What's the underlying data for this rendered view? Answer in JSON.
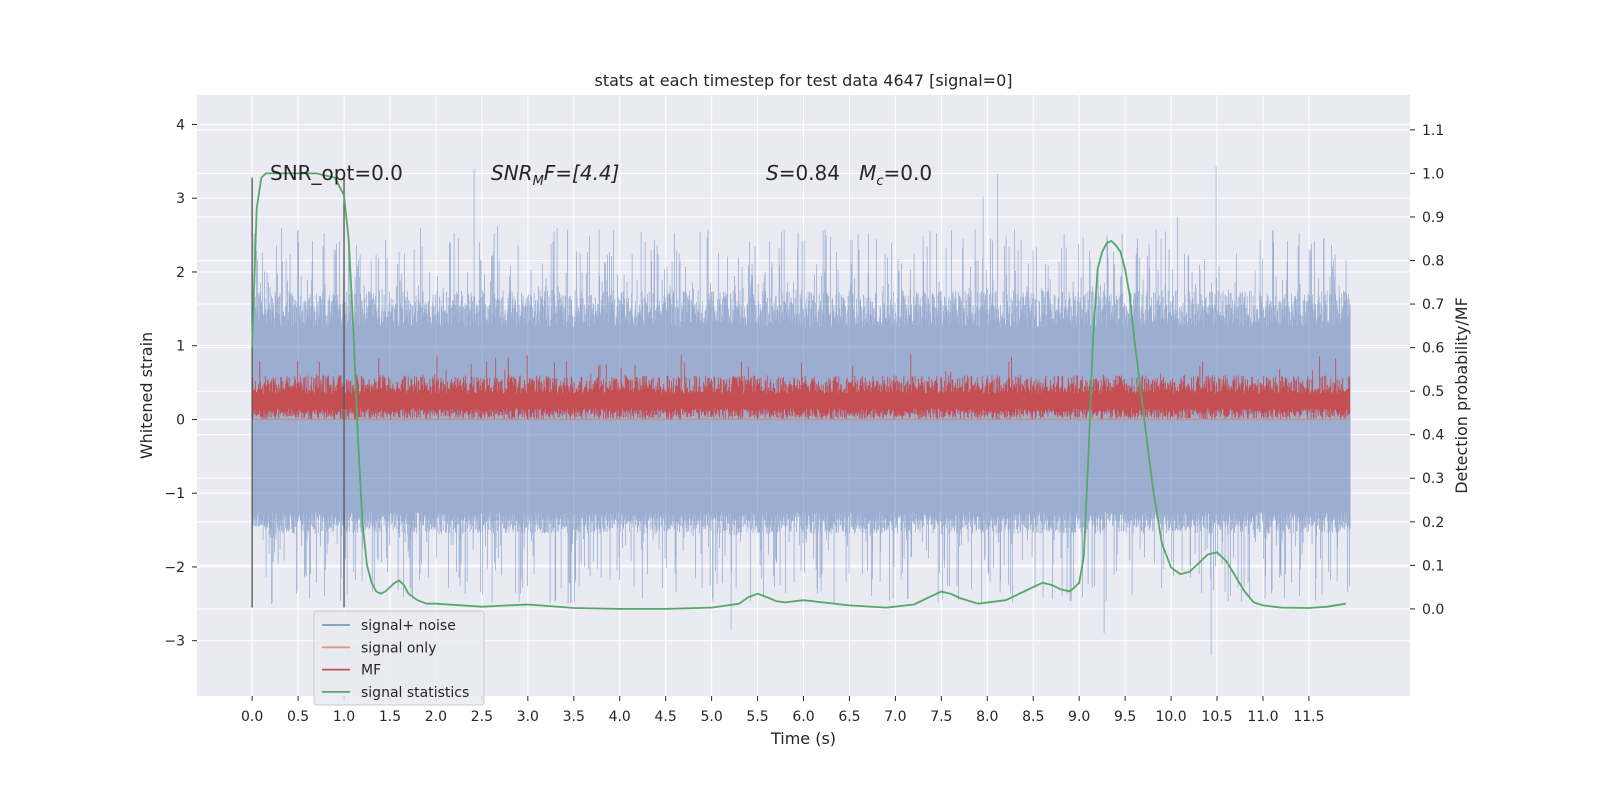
{
  "chart_data": {
    "type": "line",
    "title": "stats at each timestep for test data 4647 [signal=0]",
    "xlabel": "Time (s)",
    "ylabel": "Whitened strain",
    "y2label": "Detection probability/MF",
    "xlim": [
      -0.6,
      12.6
    ],
    "ylim": [
      -3.75,
      4.4
    ],
    "y2lim": [
      -0.2,
      1.18
    ],
    "x_ticks": [
      0.0,
      0.5,
      1.0,
      1.5,
      2.0,
      2.5,
      3.0,
      3.5,
      4.0,
      4.5,
      5.0,
      5.5,
      6.0,
      6.5,
      7.0,
      7.5,
      8.0,
      8.5,
      9.0,
      9.5,
      10.0,
      10.5,
      11.0,
      11.5
    ],
    "x_tick_labels": [
      "0.0",
      "0.5",
      "1.0",
      "1.5",
      "2.0",
      "2.5",
      "3.0",
      "3.5",
      "4.0",
      "4.5",
      "5.0",
      "5.5",
      "6.0",
      "6.5",
      "7.0",
      "7.5",
      "8.0",
      "8.5",
      "9.0",
      "9.5",
      "10.0",
      "10.5",
      "11.0",
      "11.5"
    ],
    "y_ticks": [
      -3,
      -2,
      -1,
      0,
      1,
      2,
      3,
      4
    ],
    "y_tick_labels": [
      "−3",
      "−2",
      "−1",
      "0",
      "1",
      "2",
      "3",
      "4"
    ],
    "y2_ticks": [
      0.0,
      0.1,
      0.2,
      0.3,
      0.4,
      0.5,
      0.6,
      0.7,
      0.8,
      0.9,
      1.0,
      1.1
    ],
    "y2_tick_labels": [
      "0.0",
      "0.1",
      "0.2",
      "0.3",
      "0.4",
      "0.5",
      "0.6",
      "0.7",
      "0.8",
      "0.9",
      "1.0",
      "1.1"
    ],
    "grid": true,
    "legend_position": "lower-left",
    "colors": {
      "background": "#eaeaf2",
      "grid": "#ffffff",
      "noise": "#4c72b0",
      "signal_only": "#dd8452",
      "mf": "#c44e52",
      "statistics": "#55a868",
      "marker": "#555555"
    },
    "annotations": [
      {
        "id": "snr-opt",
        "text": "SNR_opt=0.0"
      },
      {
        "id": "snr-mf",
        "text": "SNR",
        "sub": "M",
        "tail": "F=[4.4]"
      },
      {
        "id": "s-mc",
        "text": "S",
        "tail1": "=0.84   ",
        "text2": "M",
        "sub2": "c",
        "tail2": "=0.0"
      }
    ],
    "vertical_markers": [
      {
        "x": 0.0,
        "y_from": -2.55,
        "y_to": 3.28
      },
      {
        "x": 1.0,
        "y_from": -2.55,
        "y_to": 3.28
      }
    ],
    "series": [
      {
        "name": "signal+ noise",
        "axis": "left",
        "x_range": [
          0.0,
          11.95
        ],
        "band_low": -1.4,
        "band_high": 1.5,
        "burst_low": -2.5,
        "burst_high": 2.6
      },
      {
        "name": "signal only",
        "axis": "left",
        "constant": 0.0,
        "x_range": [
          0.0,
          11.95
        ]
      },
      {
        "name": "MF",
        "axis": "left",
        "x_range": [
          0.0,
          11.95
        ],
        "band_low": 0.0,
        "band_high": 0.6
      },
      {
        "name": "signal statistics",
        "axis": "right",
        "x": [
          0.0,
          0.05,
          0.1,
          0.15,
          0.2,
          0.3,
          0.5,
          0.7,
          0.9,
          1.0,
          1.05,
          1.1,
          1.15,
          1.2,
          1.25,
          1.3,
          1.35,
          1.4,
          1.45,
          1.5,
          1.55,
          1.6,
          1.65,
          1.7,
          1.8,
          1.9,
          2.0,
          2.5,
          3.0,
          3.5,
          4.0,
          4.5,
          5.0,
          5.3,
          5.4,
          5.5,
          5.6,
          5.7,
          5.8,
          6.0,
          6.5,
          6.9,
          7.2,
          7.4,
          7.5,
          7.6,
          7.7,
          7.9,
          8.2,
          8.4,
          8.5,
          8.6,
          8.7,
          8.8,
          8.9,
          9.0,
          9.05,
          9.1,
          9.15,
          9.2,
          9.25,
          9.3,
          9.35,
          9.4,
          9.45,
          9.5,
          9.55,
          9.6,
          9.7,
          9.8,
          9.9,
          10.0,
          10.1,
          10.2,
          10.3,
          10.4,
          10.5,
          10.6,
          10.7,
          10.8,
          10.9,
          11.0,
          11.2,
          11.5,
          11.7,
          11.9
        ],
        "values": [
          0.6,
          0.92,
          0.99,
          1.0,
          1.0,
          1.0,
          1.0,
          1.0,
          0.99,
          0.95,
          0.85,
          0.65,
          0.4,
          0.2,
          0.1,
          0.06,
          0.04,
          0.035,
          0.04,
          0.05,
          0.06,
          0.065,
          0.055,
          0.035,
          0.02,
          0.012,
          0.012,
          0.005,
          0.01,
          0.002,
          0.0,
          0.0,
          0.003,
          0.012,
          0.027,
          0.035,
          0.027,
          0.018,
          0.015,
          0.02,
          0.008,
          0.003,
          0.01,
          0.03,
          0.04,
          0.035,
          0.025,
          0.012,
          0.02,
          0.04,
          0.05,
          0.06,
          0.055,
          0.045,
          0.04,
          0.06,
          0.12,
          0.35,
          0.62,
          0.78,
          0.82,
          0.84,
          0.845,
          0.835,
          0.82,
          0.78,
          0.72,
          0.62,
          0.45,
          0.28,
          0.15,
          0.095,
          0.08,
          0.085,
          0.105,
          0.125,
          0.13,
          0.11,
          0.075,
          0.04,
          0.015,
          0.008,
          0.003,
          0.002,
          0.005,
          0.012
        ]
      }
    ]
  }
}
